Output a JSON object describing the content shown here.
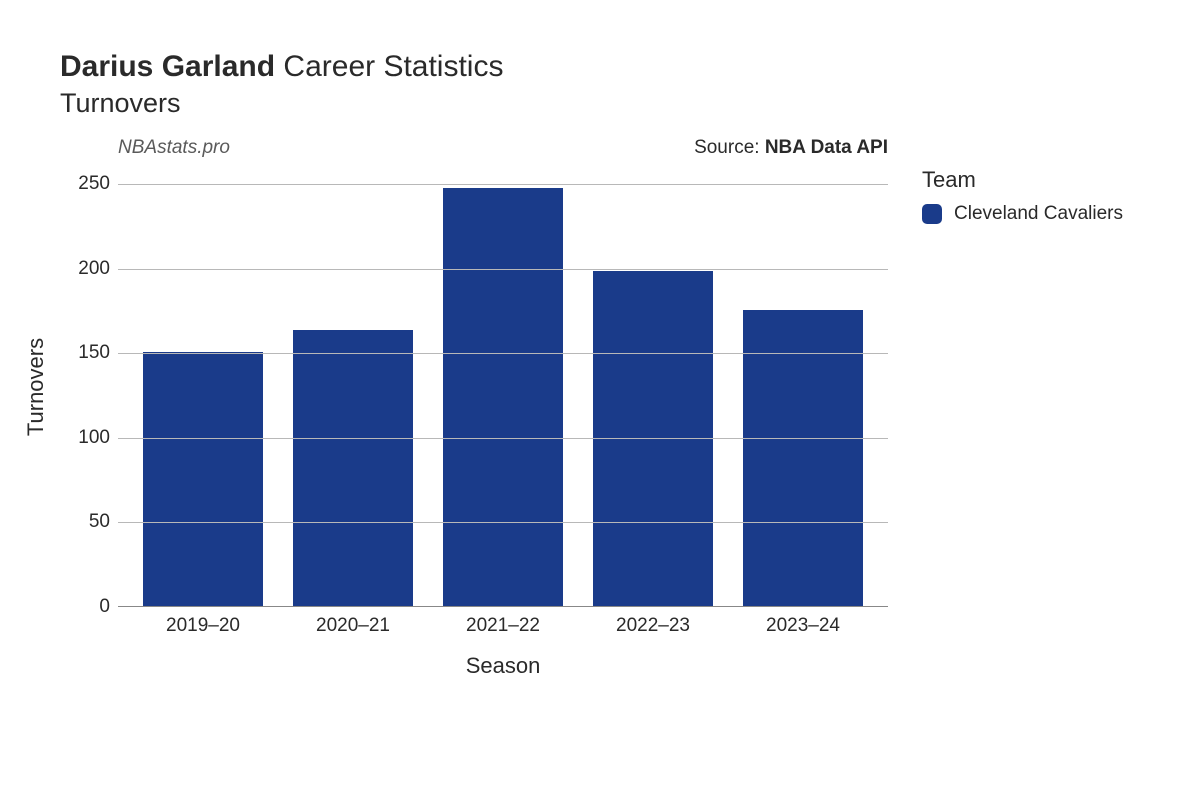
{
  "title": {
    "player": "Darius Garland",
    "rest": " Career Statistics",
    "fontsize_pt": 22
  },
  "subtitle": {
    "text": "Turnovers",
    "fontsize_pt": 20
  },
  "attribution": {
    "left": "NBAstats.pro",
    "right_prefix": "Source: ",
    "right_bold": "NBA Data API",
    "fontsize_pt": 14
  },
  "chart": {
    "type": "bar",
    "xlabel": "Season",
    "ylabel": "Turnovers",
    "label_fontsize_pt": 16,
    "tick_fontsize_pt": 14,
    "categories": [
      "2019–20",
      "2020–21",
      "2021–22",
      "2022–23",
      "2023–24"
    ],
    "values": [
      150,
      163,
      247,
      198,
      175
    ],
    "bar_colors": [
      "#1a3b8a",
      "#1a3b8a",
      "#1a3b8a",
      "#1a3b8a",
      "#1a3b8a"
    ],
    "ylim": [
      0,
      260
    ],
    "yticks": [
      0,
      50,
      100,
      150,
      200,
      250
    ],
    "grid_color": "#b8b8b8",
    "axis_color": "#888888",
    "background_color": "#ffffff",
    "bar_width": 0.8
  },
  "legend": {
    "title": "Team",
    "items": [
      {
        "label": "Cleveland Cavaliers",
        "color": "#1a3b8a"
      }
    ],
    "title_fontsize_pt": 16,
    "item_fontsize_pt": 14
  }
}
